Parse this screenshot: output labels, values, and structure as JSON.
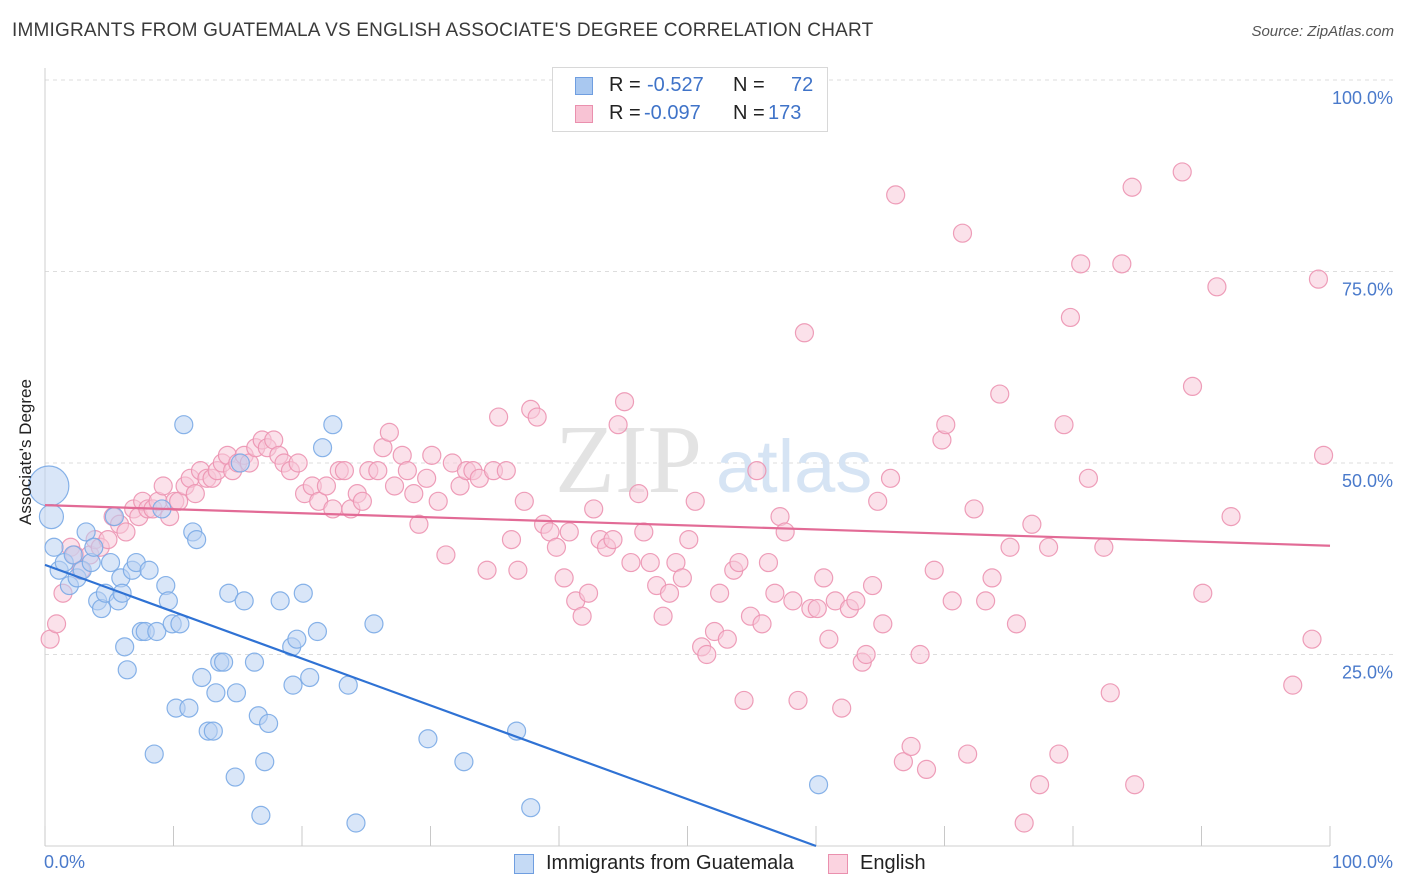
{
  "title": "IMMIGRANTS FROM GUATEMALA VS ENGLISH ASSOCIATE'S DEGREE CORRELATION CHART",
  "source": "Source: ZipAtlas.com",
  "watermark": {
    "zip": "ZIP",
    "atlas": "atlas"
  },
  "stats": [
    {
      "r_label": "R =",
      "r_value": "-0.527",
      "n_label": "N =",
      "n_value": "72",
      "color": "#a9c8f0",
      "border": "#6f9ee0"
    },
    {
      "r_label": "R =",
      "r_value": "-0.097",
      "n_label": "N =",
      "n_value": "173",
      "color": "#f8c3d4",
      "border": "#ea90ae"
    }
  ],
  "legend": [
    {
      "label": "Immigrants from Guatemala",
      "color": "#c5daf5",
      "border": "#6f9ee0"
    },
    {
      "label": "English",
      "color": "#fbd3e0",
      "border": "#ea90ae"
    }
  ],
  "chart_data": {
    "type": "scatter",
    "xlabel": "",
    "ylabel": "Associate's Degree",
    "xlim": [
      0,
      100
    ],
    "ylim": [
      0,
      100
    ],
    "x_tick_labels": [
      "0.0%",
      "100.0%"
    ],
    "y_ticks": [
      25,
      50,
      75,
      100
    ],
    "y_tick_labels": [
      "25.0%",
      "50.0%",
      "75.0%",
      "100.0%"
    ],
    "grid": true,
    "series": [
      {
        "name": "Immigrants from Guatemala",
        "color": "#7aaae6",
        "fill": "#b9d2f2",
        "trend": {
          "x": [
            0,
            60
          ],
          "y": [
            36.7,
            0
          ]
        },
        "points": [
          [
            0.3,
            47,
            4
          ],
          [
            0.5,
            43,
            2
          ],
          [
            0.7,
            39,
            1
          ],
          [
            1.1,
            36,
            1
          ],
          [
            1.5,
            37,
            1
          ],
          [
            1.9,
            34,
            1
          ],
          [
            2.2,
            38,
            1
          ],
          [
            2.5,
            35,
            1
          ],
          [
            2.9,
            36,
            1
          ],
          [
            3.2,
            41,
            1
          ],
          [
            3.6,
            37,
            1
          ],
          [
            3.8,
            39,
            1
          ],
          [
            4.1,
            32,
            1
          ],
          [
            4.4,
            31,
            1
          ],
          [
            4.7,
            33,
            1
          ],
          [
            5.1,
            37,
            1
          ],
          [
            5.4,
            43,
            1
          ],
          [
            5.7,
            32,
            1
          ],
          [
            5.9,
            35,
            1
          ],
          [
            6.2,
            26,
            1
          ],
          [
            6.4,
            23,
            1
          ],
          [
            6.8,
            36,
            1
          ],
          [
            7.1,
            37,
            1
          ],
          [
            7.5,
            28,
            1
          ],
          [
            7.8,
            28,
            1
          ],
          [
            8.1,
            36,
            1
          ],
          [
            8.5,
            12,
            1
          ],
          [
            8.7,
            28,
            1
          ],
          [
            9.1,
            44,
            1
          ],
          [
            9.4,
            34,
            1
          ],
          [
            9.6,
            32,
            1
          ],
          [
            9.9,
            29,
            1
          ],
          [
            10.2,
            18,
            1
          ],
          [
            10.5,
            29,
            1
          ],
          [
            10.8,
            55,
            1
          ],
          [
            11.2,
            18,
            1
          ],
          [
            11.5,
            41,
            1
          ],
          [
            11.8,
            40,
            1
          ],
          [
            12.2,
            22,
            1
          ],
          [
            12.7,
            15,
            1
          ],
          [
            13.1,
            15,
            1
          ],
          [
            13.3,
            20,
            1
          ],
          [
            13.6,
            24,
            1
          ],
          [
            13.9,
            24,
            1
          ],
          [
            14.3,
            33,
            1
          ],
          [
            14.8,
            9,
            1
          ],
          [
            14.9,
            20,
            1
          ],
          [
            15.2,
            50,
            1
          ],
          [
            15.5,
            32,
            1
          ],
          [
            16.3,
            24,
            1
          ],
          [
            16.6,
            17,
            1
          ],
          [
            16.8,
            4,
            1
          ],
          [
            17.1,
            11,
            1
          ],
          [
            17.4,
            16,
            1
          ],
          [
            18.3,
            32,
            1
          ],
          [
            19.2,
            26,
            1
          ],
          [
            19.3,
            21,
            1
          ],
          [
            19.6,
            27,
            1
          ],
          [
            20.1,
            33,
            1
          ],
          [
            20.6,
            22,
            1
          ],
          [
            21.2,
            28,
            1
          ],
          [
            21.6,
            52,
            1
          ],
          [
            22.4,
            55,
            1
          ],
          [
            23.6,
            21,
            1
          ],
          [
            24.2,
            3,
            1
          ],
          [
            25.6,
            29,
            1
          ],
          [
            29.8,
            14,
            1
          ],
          [
            32.6,
            11,
            1
          ],
          [
            36.7,
            15,
            1
          ],
          [
            37.8,
            5,
            1
          ],
          [
            60.2,
            8,
            1
          ],
          [
            6.0,
            33,
            1
          ]
        ]
      },
      {
        "name": "English",
        "color": "#ec93b1",
        "fill": "#f8c9d8",
        "trend": {
          "x": [
            0,
            100
          ],
          "y": [
            44.5,
            39.2
          ]
        },
        "points": [
          [
            0.4,
            27,
            1
          ],
          [
            0.9,
            29,
            1
          ],
          [
            1.4,
            33,
            1
          ],
          [
            2.0,
            39,
            1
          ],
          [
            2.3,
            38,
            1
          ],
          [
            2.8,
            36,
            1
          ],
          [
            3.5,
            38,
            1
          ],
          [
            3.9,
            40,
            1
          ],
          [
            4.3,
            39,
            1
          ],
          [
            4.9,
            40,
            1
          ],
          [
            5.3,
            43,
            1
          ],
          [
            5.8,
            42,
            1
          ],
          [
            6.3,
            41,
            1
          ],
          [
            6.9,
            44,
            1
          ],
          [
            7.3,
            43,
            1
          ],
          [
            7.6,
            45,
            1
          ],
          [
            8.0,
            44,
            1
          ],
          [
            8.4,
            44,
            1
          ],
          [
            8.8,
            45,
            1
          ],
          [
            9.2,
            47,
            1
          ],
          [
            9.7,
            43,
            1
          ],
          [
            10.1,
            45,
            1
          ],
          [
            10.4,
            45,
            1
          ],
          [
            10.9,
            47,
            1
          ],
          [
            11.3,
            48,
            1
          ],
          [
            11.7,
            46,
            1
          ],
          [
            12.1,
            49,
            1
          ],
          [
            12.6,
            48,
            1
          ],
          [
            13.0,
            48,
            1
          ],
          [
            13.4,
            49,
            1
          ],
          [
            13.8,
            50,
            1
          ],
          [
            14.2,
            51,
            1
          ],
          [
            14.6,
            49,
            1
          ],
          [
            15.0,
            50,
            1
          ],
          [
            15.5,
            51,
            1
          ],
          [
            15.9,
            50,
            1
          ],
          [
            16.4,
            52,
            1
          ],
          [
            16.9,
            53,
            1
          ],
          [
            17.3,
            52,
            1
          ],
          [
            17.8,
            53,
            1
          ],
          [
            18.2,
            51,
            1
          ],
          [
            18.6,
            50,
            1
          ],
          [
            19.1,
            49,
            1
          ],
          [
            19.7,
            50,
            1
          ],
          [
            20.2,
            46,
            1
          ],
          [
            20.8,
            47,
            1
          ],
          [
            21.3,
            45,
            1
          ],
          [
            21.9,
            47,
            1
          ],
          [
            22.4,
            44,
            1
          ],
          [
            22.9,
            49,
            1
          ],
          [
            23.3,
            49,
            1
          ],
          [
            23.8,
            44,
            1
          ],
          [
            24.3,
            46,
            1
          ],
          [
            24.7,
            45,
            1
          ],
          [
            25.2,
            49,
            1
          ],
          [
            25.9,
            49,
            1
          ],
          [
            26.3,
            52,
            1
          ],
          [
            26.8,
            54,
            1
          ],
          [
            27.2,
            47,
            1
          ],
          [
            27.8,
            51,
            1
          ],
          [
            28.2,
            49,
            1
          ],
          [
            28.7,
            46,
            1
          ],
          [
            29.1,
            42,
            1
          ],
          [
            29.7,
            48,
            1
          ],
          [
            30.1,
            51,
            1
          ],
          [
            30.6,
            45,
            1
          ],
          [
            31.2,
            38,
            1
          ],
          [
            31.7,
            50,
            1
          ],
          [
            32.3,
            47,
            1
          ],
          [
            32.8,
            49,
            1
          ],
          [
            33.3,
            49,
            1
          ],
          [
            33.8,
            48,
            1
          ],
          [
            34.4,
            36,
            1
          ],
          [
            34.9,
            49,
            1
          ],
          [
            35.3,
            56,
            1
          ],
          [
            35.9,
            49,
            1
          ],
          [
            36.3,
            40,
            1
          ],
          [
            36.8,
            36,
            1
          ],
          [
            37.3,
            45,
            1
          ],
          [
            37.8,
            57,
            1
          ],
          [
            38.3,
            56,
            1
          ],
          [
            38.8,
            42,
            1
          ],
          [
            39.3,
            41,
            1
          ],
          [
            39.8,
            39,
            1
          ],
          [
            40.4,
            35,
            1
          ],
          [
            40.8,
            41,
            1
          ],
          [
            41.3,
            32,
            1
          ],
          [
            41.8,
            30,
            1
          ],
          [
            42.3,
            33,
            1
          ],
          [
            42.7,
            44,
            1
          ],
          [
            43.2,
            40,
            1
          ],
          [
            43.7,
            39,
            1
          ],
          [
            44.2,
            40,
            1
          ],
          [
            44.6,
            55,
            1
          ],
          [
            45.1,
            58,
            1
          ],
          [
            45.6,
            37,
            1
          ],
          [
            46.2,
            46,
            1
          ],
          [
            46.6,
            41,
            1
          ],
          [
            47.1,
            37,
            1
          ],
          [
            47.6,
            34,
            1
          ],
          [
            48.1,
            30,
            1
          ],
          [
            48.6,
            33,
            1
          ],
          [
            49.1,
            37,
            1
          ],
          [
            49.6,
            35,
            1
          ],
          [
            50.1,
            40,
            1
          ],
          [
            50.6,
            45,
            1
          ],
          [
            51.1,
            26,
            1
          ],
          [
            51.5,
            25,
            1
          ],
          [
            52.1,
            28,
            1
          ],
          [
            52.5,
            33,
            1
          ],
          [
            53.1,
            27,
            1
          ],
          [
            53.6,
            36,
            1
          ],
          [
            54.0,
            37,
            1
          ],
          [
            54.4,
            19,
            1
          ],
          [
            54.9,
            30,
            1
          ],
          [
            55.4,
            49,
            1
          ],
          [
            55.8,
            29,
            1
          ],
          [
            56.3,
            37,
            1
          ],
          [
            56.8,
            33,
            1
          ],
          [
            57.2,
            43,
            1
          ],
          [
            57.6,
            41,
            1
          ],
          [
            58.2,
            32,
            1
          ],
          [
            58.6,
            19,
            1
          ],
          [
            59.1,
            67,
            1
          ],
          [
            59.6,
            31,
            1
          ],
          [
            60.1,
            31,
            1
          ],
          [
            60.6,
            35,
            1
          ],
          [
            61.0,
            27,
            1
          ],
          [
            61.5,
            32,
            1
          ],
          [
            62.0,
            18,
            1
          ],
          [
            62.6,
            31,
            1
          ],
          [
            63.1,
            32,
            1
          ],
          [
            63.6,
            24,
            1
          ],
          [
            63.9,
            25,
            1
          ],
          [
            64.4,
            34,
            1
          ],
          [
            64.8,
            45,
            1
          ],
          [
            65.2,
            29,
            1
          ],
          [
            65.8,
            48,
            1
          ],
          [
            66.2,
            85,
            1
          ],
          [
            66.8,
            11,
            1
          ],
          [
            67.4,
            13,
            1
          ],
          [
            68.1,
            25,
            1
          ],
          [
            68.6,
            10,
            1
          ],
          [
            69.2,
            36,
            1
          ],
          [
            69.8,
            53,
            1
          ],
          [
            70.1,
            55,
            1
          ],
          [
            70.6,
            32,
            1
          ],
          [
            71.4,
            80,
            1
          ],
          [
            71.8,
            12,
            1
          ],
          [
            72.3,
            44,
            1
          ],
          [
            73.2,
            32,
            1
          ],
          [
            73.7,
            35,
            1
          ],
          [
            74.3,
            59,
            1
          ],
          [
            75.1,
            39,
            1
          ],
          [
            75.6,
            29,
            1
          ],
          [
            76.2,
            3,
            1
          ],
          [
            76.8,
            42,
            1
          ],
          [
            77.4,
            8,
            1
          ],
          [
            78.1,
            39,
            1
          ],
          [
            78.9,
            12,
            1
          ],
          [
            79.3,
            55,
            1
          ],
          [
            79.8,
            69,
            1
          ],
          [
            80.6,
            76,
            1
          ],
          [
            81.2,
            48,
            1
          ],
          [
            82.4,
            39,
            1
          ],
          [
            82.9,
            20,
            1
          ],
          [
            83.8,
            76,
            1
          ],
          [
            84.6,
            86,
            1
          ],
          [
            84.8,
            8,
            1
          ],
          [
            89.3,
            60,
            1
          ],
          [
            90.1,
            33,
            1
          ],
          [
            91.2,
            73,
            1
          ],
          [
            92.3,
            43,
            1
          ],
          [
            97.1,
            21,
            1
          ],
          [
            98.6,
            27,
            1
          ],
          [
            99.1,
            74,
            1
          ],
          [
            99.5,
            51,
            1
          ],
          [
            88.5,
            88,
            1
          ]
        ]
      }
    ]
  }
}
